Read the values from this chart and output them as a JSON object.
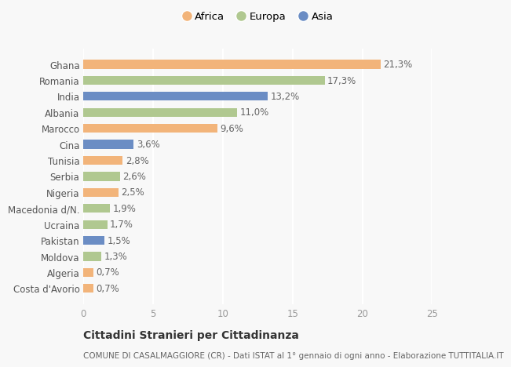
{
  "countries": [
    "Costa d'Avorio",
    "Algeria",
    "Moldova",
    "Pakistan",
    "Ucraina",
    "Macedonia d/N.",
    "Nigeria",
    "Serbia",
    "Tunisia",
    "Cina",
    "Marocco",
    "Albania",
    "India",
    "Romania",
    "Ghana"
  ],
  "values": [
    0.7,
    0.7,
    1.3,
    1.5,
    1.7,
    1.9,
    2.5,
    2.6,
    2.8,
    3.6,
    9.6,
    11.0,
    13.2,
    17.3,
    21.3
  ],
  "continents": [
    "Africa",
    "Africa",
    "Europa",
    "Asia",
    "Europa",
    "Europa",
    "Africa",
    "Europa",
    "Africa",
    "Asia",
    "Africa",
    "Europa",
    "Asia",
    "Europa",
    "Africa"
  ],
  "colors": {
    "Africa": "#F2B47A",
    "Europa": "#B0C890",
    "Asia": "#6B8DC4"
  },
  "legend_order": [
    "Africa",
    "Europa",
    "Asia"
  ],
  "xlim": [
    0,
    25
  ],
  "xticks": [
    0,
    5,
    10,
    15,
    20,
    25
  ],
  "title": "Cittadini Stranieri per Cittadinanza",
  "subtitle": "COMUNE DI CASALMAGGIORE (CR) - Dati ISTAT al 1° gennaio di ogni anno - Elaborazione TUTTITALIA.IT",
  "bg_color": "#f8f8f8",
  "bar_height": 0.55,
  "label_fontsize": 8.5,
  "value_fontsize": 8.5,
  "title_fontsize": 10,
  "subtitle_fontsize": 7.5
}
